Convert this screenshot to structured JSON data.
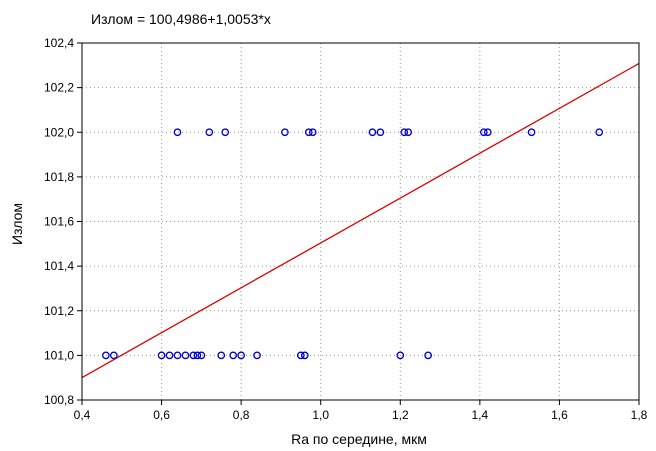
{
  "chart_data": {
    "type": "scatter",
    "title": "Излом = 100,4986+1,0053*x",
    "xlabel": "Ra по середине, мкм",
    "ylabel": "Излом",
    "xlim": [
      0.4,
      1.8
    ],
    "ylim": [
      100.8,
      102.4
    ],
    "x_ticks": [
      "0,4",
      "0,6",
      "0,8",
      "1,0",
      "1,2",
      "1,4",
      "1,6",
      "1,8"
    ],
    "y_ticks": [
      "100,8",
      "101,0",
      "101,2",
      "101,4",
      "101,6",
      "101,8",
      "102,0",
      "102,2",
      "102,4"
    ],
    "grid": true,
    "point_color": "#0000cc",
    "line_color": "#dd0000",
    "fit": {
      "intercept": 100.4986,
      "slope": 1.0053
    },
    "points": [
      {
        "x": 0.46,
        "y": 101.0
      },
      {
        "x": 0.48,
        "y": 101.0
      },
      {
        "x": 0.6,
        "y": 101.0
      },
      {
        "x": 0.62,
        "y": 101.0
      },
      {
        "x": 0.64,
        "y": 101.0
      },
      {
        "x": 0.66,
        "y": 101.0
      },
      {
        "x": 0.68,
        "y": 101.0
      },
      {
        "x": 0.69,
        "y": 101.0
      },
      {
        "x": 0.7,
        "y": 101.0
      },
      {
        "x": 0.75,
        "y": 101.0
      },
      {
        "x": 0.78,
        "y": 101.0
      },
      {
        "x": 0.8,
        "y": 101.0
      },
      {
        "x": 0.84,
        "y": 101.0
      },
      {
        "x": 0.95,
        "y": 101.0
      },
      {
        "x": 0.96,
        "y": 101.0
      },
      {
        "x": 1.2,
        "y": 101.0
      },
      {
        "x": 1.27,
        "y": 101.0
      },
      {
        "x": 0.64,
        "y": 102.0
      },
      {
        "x": 0.72,
        "y": 102.0
      },
      {
        "x": 0.76,
        "y": 102.0
      },
      {
        "x": 0.91,
        "y": 102.0
      },
      {
        "x": 0.97,
        "y": 102.0
      },
      {
        "x": 0.98,
        "y": 102.0
      },
      {
        "x": 1.13,
        "y": 102.0
      },
      {
        "x": 1.15,
        "y": 102.0
      },
      {
        "x": 1.21,
        "y": 102.0
      },
      {
        "x": 1.22,
        "y": 102.0
      },
      {
        "x": 1.41,
        "y": 102.0
      },
      {
        "x": 1.42,
        "y": 102.0
      },
      {
        "x": 1.53,
        "y": 102.0
      },
      {
        "x": 1.7,
        "y": 102.0
      }
    ]
  }
}
